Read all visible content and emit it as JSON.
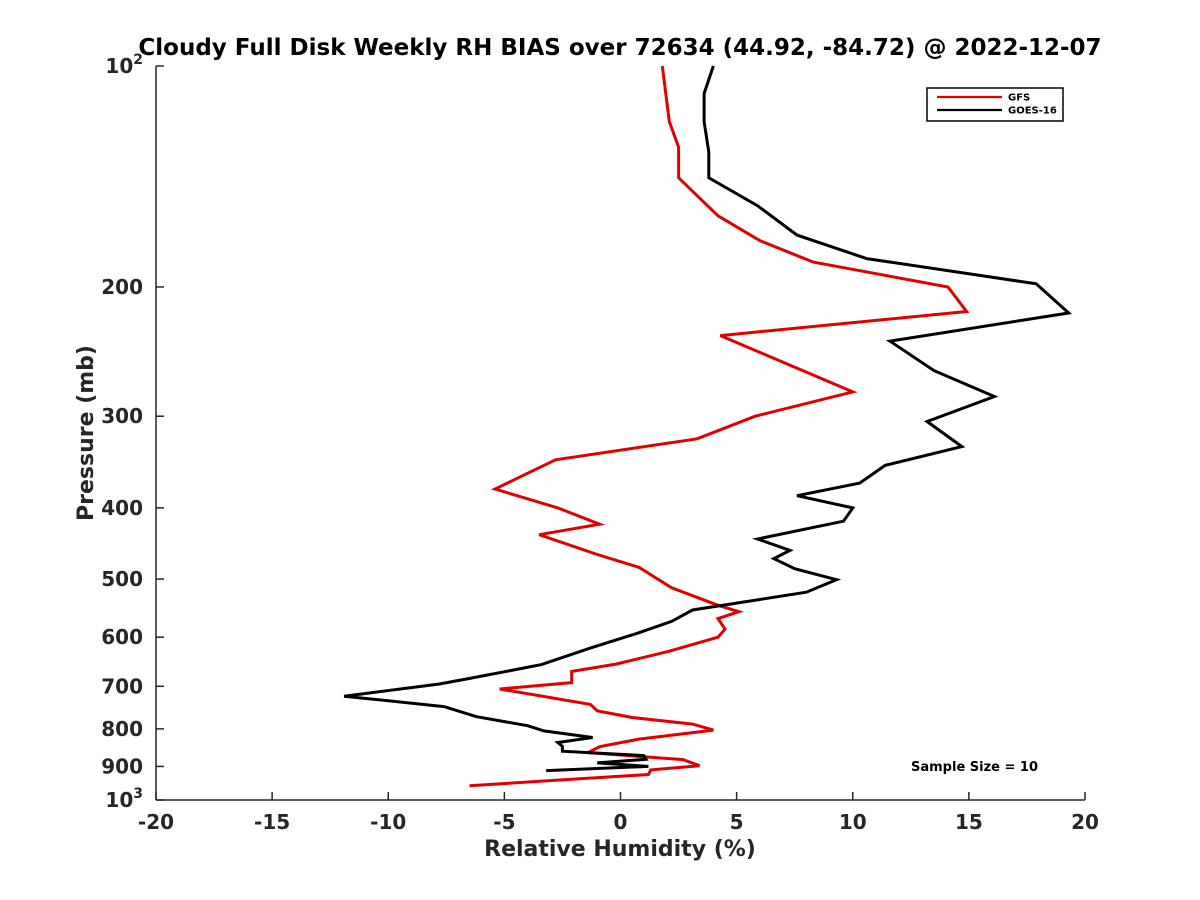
{
  "chart_data": {
    "type": "line",
    "title": "Cloudy Full Disk Weekly RH BIAS over 72634 (44.92, -84.72) @ 2022-12-07",
    "xlabel": "Relative Humidity (%)",
    "ylabel": "Pressure (mb)",
    "xlim": [
      -20,
      20
    ],
    "ylim": [
      100,
      1000
    ],
    "yscale": "log",
    "y_reversed": true,
    "x_ticks": [
      "-20",
      "-15",
      "-10",
      "-5",
      "0",
      "5",
      "10",
      "15",
      "20"
    ],
    "y_ticks": [
      {
        "value": 100,
        "label": "10",
        "sup": "2"
      },
      {
        "value": 200,
        "label": "200"
      },
      {
        "value": 300,
        "label": "300"
      },
      {
        "value": 400,
        "label": "400"
      },
      {
        "value": 500,
        "label": "500"
      },
      {
        "value": 600,
        "label": "600"
      },
      {
        "value": 700,
        "label": "700"
      },
      {
        "value": 800,
        "label": "800"
      },
      {
        "value": 900,
        "label": "900"
      },
      {
        "value": 1000,
        "label": "10",
        "sup": "3"
      }
    ],
    "grid": false,
    "legend_position": "top-right",
    "series": [
      {
        "name": "GFS",
        "color": "#e00000",
        "x": [
          1.8,
          2.1,
          2.5,
          2.5,
          4.2,
          6.0,
          8.3,
          14.1,
          14.9,
          4.3,
          10.0,
          5.8,
          3.3,
          -2.8,
          -5.4,
          -2.7,
          -0.9,
          -3.5,
          -1.0,
          0.8,
          2.2,
          4.2,
          5.1,
          4.2,
          4.5,
          4.2,
          2.1,
          -0.2,
          -2.1,
          -2.1,
          -5.2,
          -1.3,
          -1.0,
          0.5,
          3.1,
          4.0,
          0.8,
          -0.9,
          -1.4,
          2.7,
          3.4,
          1.3,
          1.2,
          -6.5
        ],
        "y": [
          100,
          119,
          129,
          142,
          160,
          173,
          185,
          200,
          216,
          233,
          278,
          300,
          322,
          344,
          377,
          400,
          421,
          435,
          463,
          482,
          514,
          543,
          554,
          566,
          585,
          600,
          627,
          653,
          668,
          692,
          706,
          741,
          756,
          772,
          788,
          803,
          826,
          846,
          862,
          881,
          898,
          910,
          923,
          956
        ]
      },
      {
        "name": "GOES-16",
        "color": "#000000",
        "x": [
          4.0,
          3.6,
          3.6,
          3.8,
          3.8,
          5.9,
          7.6,
          10.6,
          17.9,
          19.3,
          11.6,
          13.5,
          16.1,
          13.2,
          14.7,
          11.4,
          10.3,
          7.6,
          10.0,
          9.6,
          5.9,
          7.3,
          6.6,
          7.5,
          9.3,
          8.0,
          3.1,
          2.2,
          0.7,
          -1.3,
          -3.4,
          -6.6,
          -7.8,
          -11.9,
          -7.6,
          -6.2,
          -4.0,
          -3.3,
          -1.2,
          -2.7,
          -2.5,
          -2.5,
          1.0,
          1.1,
          -1.0,
          1.2,
          -3.2
        ],
        "y": [
          100,
          109,
          119,
          131,
          142,
          155,
          170,
          183,
          198,
          217,
          237,
          260,
          282,
          305,
          330,
          350,
          370,
          385,
          400,
          417,
          441,
          457,
          469,
          484,
          501,
          521,
          551,
          571,
          593,
          621,
          654,
          684,
          695,
          722,
          746,
          770,
          792,
          805,
          822,
          835,
          845,
          858,
          870,
          880,
          890,
          900,
          912
        ]
      }
    ],
    "annotations": [
      "Sample Size = 10"
    ]
  }
}
